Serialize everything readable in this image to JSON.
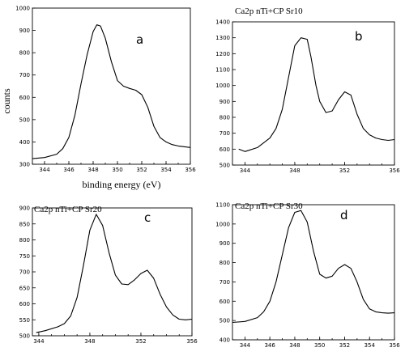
{
  "figure": {
    "ylabel": "counts",
    "xlabel": "binding energy (eV)"
  },
  "chart_data": [
    {
      "type": "line",
      "letter": "a",
      "title": "",
      "xlim": [
        343,
        356
      ],
      "ylim": [
        300,
        1000
      ],
      "xticks": [
        344,
        346,
        348,
        350,
        352,
        354,
        356
      ],
      "yticks": [
        300,
        400,
        500,
        600,
        700,
        800,
        900,
        1000
      ],
      "x": [
        343,
        344,
        345,
        345.5,
        346,
        346.5,
        347,
        347.5,
        348,
        348.3,
        348.6,
        349,
        349.5,
        350,
        350.5,
        351,
        351.5,
        352,
        352.5,
        353,
        353.5,
        354,
        354.5,
        355,
        356
      ],
      "y": [
        325,
        330,
        345,
        370,
        420,
        520,
        660,
        790,
        895,
        925,
        920,
        865,
        760,
        675,
        650,
        640,
        632,
        612,
        555,
        470,
        420,
        400,
        388,
        382,
        375
      ]
    },
    {
      "type": "line",
      "letter": "b",
      "title": "Ca2p nTi+CP Sr10",
      "xlim": [
        343,
        356
      ],
      "ylim": [
        500,
        1400
      ],
      "xticks": [
        344,
        348,
        352,
        356
      ],
      "yticks": [
        500,
        600,
        700,
        800,
        900,
        1000,
        1100,
        1200,
        1300,
        1400
      ],
      "x": [
        343.5,
        344,
        345,
        346,
        346.5,
        347,
        347.5,
        348,
        348.5,
        349,
        349.3,
        349.7,
        350,
        350.5,
        351,
        351.5,
        352,
        352.5,
        353,
        353.5,
        354,
        354.5,
        355,
        355.5,
        356
      ],
      "y": [
        600,
        585,
        610,
        670,
        730,
        850,
        1050,
        1250,
        1300,
        1290,
        1180,
        1000,
        900,
        830,
        840,
        910,
        960,
        940,
        820,
        730,
        690,
        670,
        660,
        655,
        660
      ]
    },
    {
      "type": "line",
      "letter": "c",
      "title": "Ca2p nTi+CP Sr20",
      "xlim": [
        343.5,
        356
      ],
      "ylim": [
        500,
        900
      ],
      "xticks": [
        344,
        348,
        352,
        356
      ],
      "yticks": [
        500,
        550,
        600,
        650,
        700,
        750,
        800,
        850,
        900
      ],
      "x": [
        343.8,
        344.5,
        345.5,
        346,
        346.5,
        347,
        347.5,
        348,
        348.5,
        349,
        349.5,
        350,
        350.5,
        351,
        351.5,
        352,
        352.5,
        353,
        353.5,
        354,
        354.5,
        355,
        355.5,
        356
      ],
      "y": [
        510,
        516,
        528,
        538,
        562,
        620,
        720,
        830,
        880,
        845,
        760,
        690,
        662,
        660,
        675,
        695,
        705,
        680,
        630,
        590,
        565,
        552,
        550,
        552
      ]
    },
    {
      "type": "line",
      "letter": "d",
      "title": "Ca2p nTi+CP Sr30",
      "xlim": [
        343,
        356
      ],
      "ylim": [
        400,
        1100
      ],
      "xticks": [
        344,
        346,
        348,
        350,
        352,
        354,
        356
      ],
      "yticks": [
        400,
        500,
        600,
        700,
        800,
        900,
        1000,
        1100
      ],
      "x": [
        343,
        344,
        345,
        345.5,
        346,
        346.5,
        347,
        347.5,
        348,
        348.5,
        349,
        349.5,
        350,
        350.5,
        351,
        351.5,
        352,
        352.5,
        353,
        353.5,
        354,
        354.5,
        355,
        355.5,
        356
      ],
      "y": [
        490,
        495,
        515,
        545,
        600,
        700,
        840,
        980,
        1060,
        1070,
        1010,
        860,
        740,
        720,
        730,
        770,
        790,
        770,
        700,
        610,
        560,
        545,
        540,
        538,
        540
      ]
    }
  ]
}
